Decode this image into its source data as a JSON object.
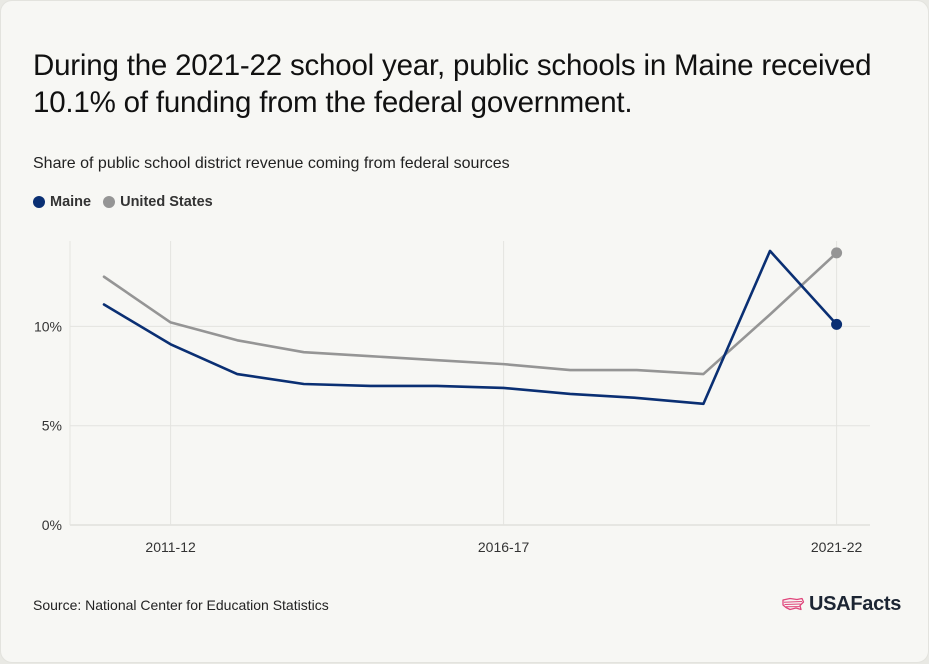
{
  "title": "During the 2021-22 school year, public schools in Maine received 10.1% of funding from the federal government.",
  "source": "Source: National Center for Education Statistics",
  "logo": {
    "text": "USAFacts",
    "icon": "us-flag-map-icon"
  },
  "colors": {
    "maine": "#0a2f73",
    "us": "#959595",
    "background": "#f7f7f4"
  },
  "chart_data": {
    "type": "line",
    "title": "Share of public school district revenue coming from federal sources",
    "xlabel": "",
    "ylabel": "",
    "x": [
      "2010-11",
      "2011-12",
      "2012-13",
      "2013-14",
      "2014-15",
      "2015-16",
      "2016-17",
      "2017-18",
      "2018-19",
      "2019-20",
      "2020-21",
      "2021-22"
    ],
    "x_tick_labels": [
      "2011-12",
      "2016-17",
      "2021-22"
    ],
    "y_ticks": [
      0,
      5,
      10
    ],
    "y_tick_labels": [
      "0%",
      "5%",
      "10%"
    ],
    "ylim": [
      0,
      14.3
    ],
    "legend_position": "top-left",
    "grid": true,
    "series": [
      {
        "name": "Maine",
        "values": [
          11.1,
          9.1,
          7.6,
          7.1,
          7.0,
          7.0,
          6.9,
          6.6,
          6.4,
          6.1,
          13.8,
          10.1
        ]
      },
      {
        "name": "United States",
        "values": [
          12.5,
          10.2,
          9.3,
          8.7,
          8.5,
          8.3,
          8.1,
          7.8,
          7.8,
          7.6,
          10.6,
          13.7
        ]
      }
    ]
  }
}
